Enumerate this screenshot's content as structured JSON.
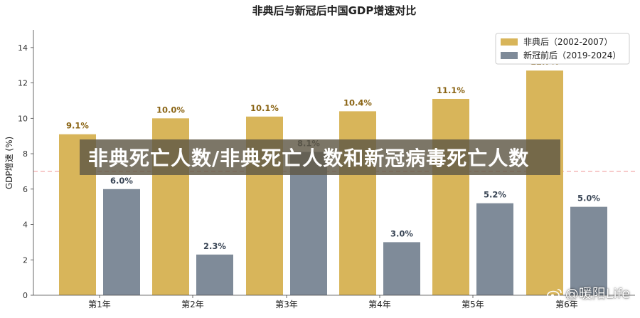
{
  "chart_data": {
    "type": "bar",
    "title": "非典后与新冠后中国GDP增速对比",
    "ylabel": "GDP增速 (%)",
    "xlabel": "",
    "categories": [
      "第1年",
      "第2年",
      "第3年",
      "第4年",
      "第5年",
      "第6年"
    ],
    "series": [
      {
        "name": "非典后（2002-2007）",
        "color": "#d8b55a",
        "label_color": "#8a6414",
        "values": [
          9.1,
          10.0,
          10.1,
          10.4,
          11.1,
          12.7
        ],
        "labels": [
          "9.1%",
          "10.0%",
          "10.1%",
          "10.4%",
          "11.1%",
          "12.7%"
        ]
      },
      {
        "name": "新冠前后（2019-2024）",
        "color": "#7f8b99",
        "label_color": "#3a4656",
        "values": [
          6.0,
          2.3,
          8.1,
          3.0,
          5.2,
          5.0
        ],
        "labels": [
          "6.0%",
          "2.3%",
          "8.1%",
          "3.0%",
          "5.2%",
          "5.0%"
        ]
      }
    ],
    "ylim": [
      0,
      15
    ],
    "yticks": [
      0,
      2,
      4,
      6,
      8,
      10,
      12,
      14
    ],
    "reference_line": {
      "value": 7,
      "color": "#f0a0a0",
      "style": "dashed"
    },
    "grid": false,
    "legend_position": "top-right"
  },
  "overlay": {
    "banner_text": "非典死亡人数/非典死亡人数和新冠病毒死亡人数",
    "watermark_text": "@暖阳Life"
  }
}
